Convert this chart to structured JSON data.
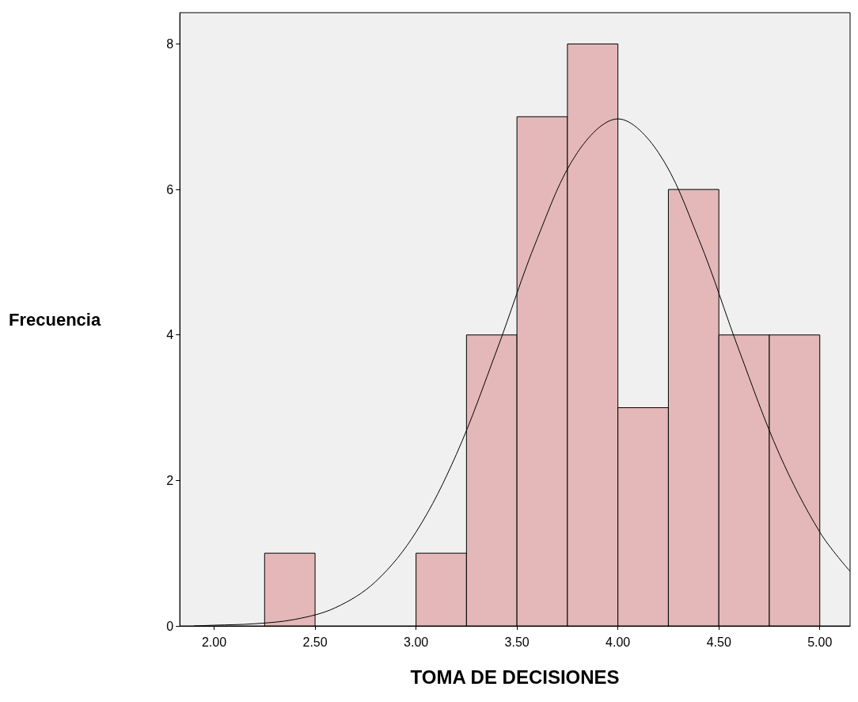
{
  "chart_data": {
    "type": "histogram",
    "xlabel": "TOMA DE DECISIONES",
    "ylabel": "Frecuencia",
    "bins": [
      2.25,
      2.5,
      2.75,
      3.0,
      3.25,
      3.5,
      3.75,
      4.0,
      4.25,
      4.5,
      4.75,
      5.0
    ],
    "values": [
      1,
      0,
      0,
      1,
      4,
      7,
      8,
      3,
      6,
      4,
      4
    ],
    "color": "#e4b8b8",
    "series": [
      {
        "type": "line",
        "color": "#000000",
        "x": [
          1.9,
          2.0,
          2.2,
          2.4,
          2.6,
          2.8,
          3.0,
          3.2,
          3.4,
          3.6,
          3.8,
          4.0,
          4.2,
          4.4,
          4.6,
          4.8,
          5.0,
          5.15
        ],
        "values": [
          0,
          0.01,
          0.03,
          0.09,
          0.25,
          0.61,
          1.29,
          2.36,
          3.79,
          5.32,
          6.51,
          6.97,
          6.51,
          5.32,
          3.79,
          2.36,
          1.29,
          0.75
        ]
      }
    ],
    "xlim": [
      1.83,
      5.15
    ],
    "ylim": [
      0,
      8.43
    ],
    "xticks": [
      {
        "value": 2,
        "label": "2.00"
      },
      {
        "value": 2.5,
        "label": "2.50"
      },
      {
        "value": 3,
        "label": "3.00"
      },
      {
        "value": 3.5,
        "label": "3.50"
      },
      {
        "value": 4,
        "label": "4.00"
      },
      {
        "value": 4.5,
        "label": "4.50"
      },
      {
        "value": 5,
        "label": "5.00"
      }
    ],
    "yticks": [
      0,
      2,
      4,
      6,
      8
    ],
    "grid": false,
    "marker": "none",
    "line_style": "solid"
  }
}
